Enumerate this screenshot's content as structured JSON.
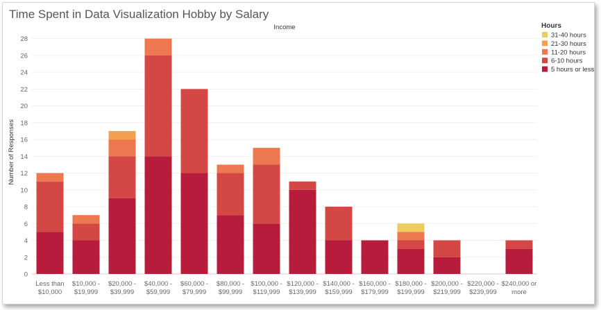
{
  "page_title": "Time Spent in Data Visualization Hobby by Salary",
  "chart_data": {
    "type": "bar",
    "stacked": true,
    "title": "Time Spent in Data Visualization Hobby by Salary",
    "column_header": "Income",
    "xlabel": "",
    "ylabel": "Number of Responses",
    "ylim": [
      0,
      29
    ],
    "yticks": [
      0,
      2,
      4,
      6,
      8,
      10,
      12,
      14,
      16,
      18,
      20,
      22,
      24,
      26,
      28
    ],
    "grid": true,
    "legend_title": "Hours",
    "legend_position": "top-right",
    "categories": [
      [
        "Less than",
        "$10,000"
      ],
      [
        "$10,000 -",
        "$19,999"
      ],
      [
        "$20,000 -",
        "$39,999"
      ],
      [
        "$40,000 -",
        "$59,999"
      ],
      [
        "$60,000 -",
        "$79,999"
      ],
      [
        "$80,000 -",
        "$99,999"
      ],
      [
        "$100,000 -",
        "$119,999"
      ],
      [
        "$120,000 -",
        "$139,999"
      ],
      [
        "$140,000 -",
        "$159,999"
      ],
      [
        "$160,000 -",
        "$179,999"
      ],
      [
        "$180,000 -",
        "$199,999"
      ],
      [
        "$200,000 -",
        "$219,999"
      ],
      [
        "$220,000 -",
        "$239,999"
      ],
      [
        "$240,000 or",
        "more"
      ]
    ],
    "series": [
      {
        "name": "5 hours or less",
        "color": "#b71c3c",
        "values": [
          5,
          4,
          9,
          14,
          12,
          7,
          6,
          10,
          4,
          4,
          3,
          2,
          0,
          3
        ]
      },
      {
        "name": "6-10 hours",
        "color": "#d34745",
        "values": [
          6,
          2,
          5,
          12,
          10,
          5,
          7,
          1,
          4,
          0,
          1,
          2,
          0,
          1
        ]
      },
      {
        "name": "11-20 hours",
        "color": "#ed774e",
        "values": [
          1,
          1,
          2,
          2,
          0,
          1,
          2,
          0,
          0,
          0,
          1,
          0,
          0,
          0
        ]
      },
      {
        "name": "21-30 hours",
        "color": "#f6a04f",
        "values": [
          0,
          0,
          1,
          0,
          0,
          0,
          0,
          0,
          0,
          0,
          0,
          0,
          0,
          0
        ]
      },
      {
        "name": "31-40 hours",
        "color": "#edcb5c",
        "values": [
          0,
          0,
          0,
          0,
          0,
          0,
          0,
          0,
          0,
          0,
          1,
          0,
          0,
          0
        ]
      }
    ],
    "legend_order": [
      "31-40 hours",
      "21-30 hours",
      "11-20 hours",
      "6-10 hours",
      "5 hours or less"
    ]
  }
}
